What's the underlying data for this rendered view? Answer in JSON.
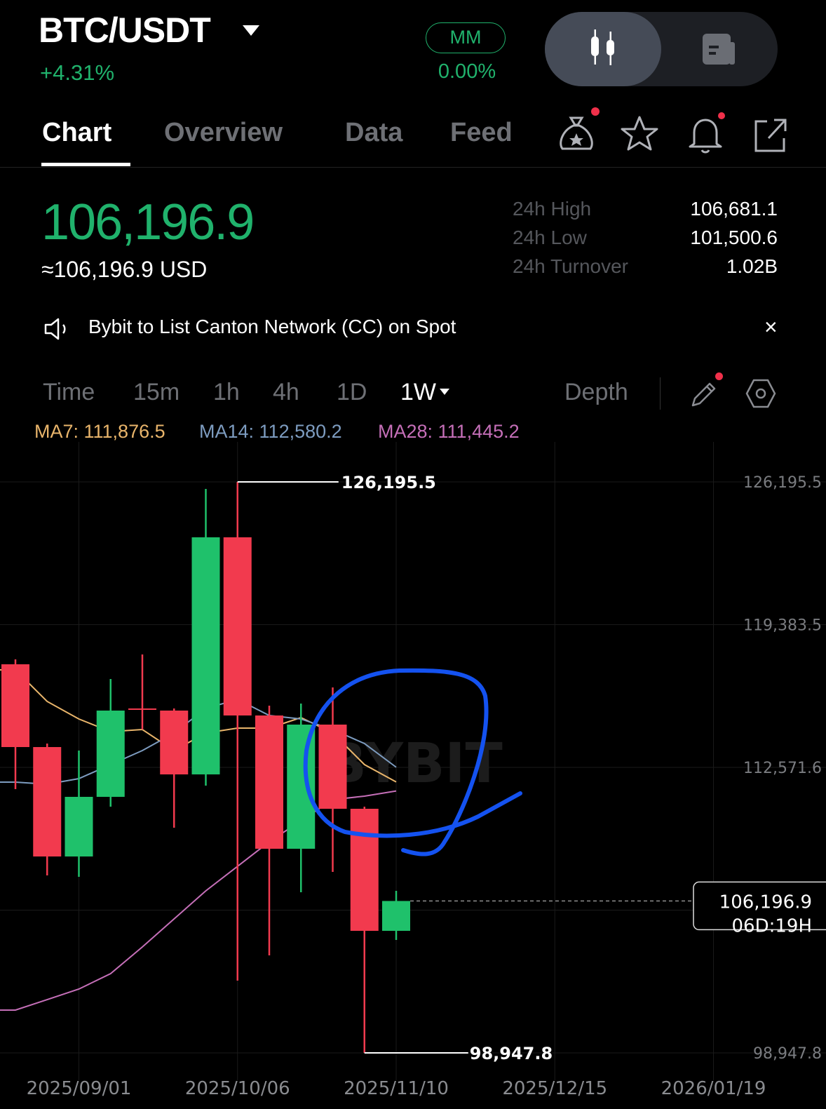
{
  "header": {
    "pair": "BTC/USDT",
    "change_pct": "+4.31%",
    "mm_label": "MM",
    "mm_value": "0.00%",
    "view_toggle": [
      "candlestick-icon",
      "document-icon"
    ]
  },
  "tabs": [
    {
      "label": "Chart",
      "active": true
    },
    {
      "label": "Overview"
    },
    {
      "label": "Data"
    },
    {
      "label": "Feed"
    }
  ],
  "tab_icons": [
    "reward-bag-icon",
    "star-icon",
    "bell-icon",
    "share-icon"
  ],
  "ticker": {
    "last_price": "106,196.9",
    "usd_price": "≈106,196.9 USD",
    "stats": [
      {
        "label": "24h High",
        "value": "106,681.1"
      },
      {
        "label": "24h Low",
        "value": "101,500.6"
      },
      {
        "label": "24h Turnover",
        "value": "1.02B"
      }
    ]
  },
  "notice": {
    "text": "Bybit to List Canton Network (CC) on Spot",
    "close": "×"
  },
  "intervals": [
    {
      "label": "Time"
    },
    {
      "label": "15m"
    },
    {
      "label": "1h"
    },
    {
      "label": "4h"
    },
    {
      "label": "1D"
    },
    {
      "label": "1W",
      "active": true
    }
  ],
  "depth_label": "Depth",
  "ma_legend": [
    {
      "label": "MA7: 111,876.5",
      "color": "#e9b56b"
    },
    {
      "label": "MA14: 112,580.2",
      "color": "#7d9cc0"
    },
    {
      "label": "MA28: 111,445.2",
      "color": "#c56fb8"
    }
  ],
  "colors": {
    "up": "#1fc16b",
    "down": "#f23a4e",
    "accent_green": "#20b26c",
    "annotation": "#1452f0"
  },
  "watermark": "BYBIT",
  "chart_data": {
    "type": "candlestick",
    "interval": "1W",
    "dates": [
      "2025/08/18",
      "2025/08/25",
      "2025/09/01",
      "2025/09/08",
      "2025/09/15",
      "2025/09/22",
      "2025/09/29",
      "2025/10/06",
      "2025/10/13",
      "2025/10/20",
      "2025/10/27",
      "2025/11/03",
      "2025/11/10"
    ],
    "ohlc": [
      [
        117492,
        117726,
        111534,
        113542
      ],
      [
        113542,
        113710,
        107417,
        108320
      ],
      [
        108320,
        113375,
        107350,
        111166
      ],
      [
        111166,
        116789,
        110697,
        115283
      ],
      [
        115384,
        117961,
        114379,
        115317
      ],
      [
        115283,
        115384,
        109693,
        112237
      ],
      [
        112237,
        125861,
        111701,
        123551
      ],
      [
        123551,
        126195.5,
        102396,
        115049
      ],
      [
        115049,
        115518,
        103601,
        108689
      ],
      [
        108689,
        115618,
        106613,
        114614
      ],
      [
        114614,
        116388,
        107584,
        110597
      ],
      [
        110597,
        110697,
        98947.8,
        104772
      ],
      [
        104772,
        106681.1,
        104337,
        106196.9
      ]
    ],
    "ma": {
      "MA7": [
        117224,
        115718,
        114881,
        114278,
        114379,
        113375,
        114212,
        114446,
        114446,
        114948,
        114212,
        112705,
        111876.5
      ],
      "MA14": [
        111868,
        111768,
        112036,
        112705,
        113375,
        114212,
        115384,
        115818,
        115049,
        114881,
        114379,
        113710,
        112580.2
      ],
      "MA28": [
        100990,
        101491,
        101994,
        102730,
        104002,
        105341,
        106680,
        107851,
        109023,
        110027,
        111032,
        111199,
        111445.2
      ]
    },
    "y_ticks": [
      "126,195.5",
      "119,383.5",
      "112,571.6",
      "98,947.8"
    ],
    "y_tick_values": [
      126195.5,
      119383.5,
      112571.6,
      98947.8
    ],
    "x_ticks": [
      "2025/09/01",
      "2025/10/06",
      "2025/11/10",
      "2025/12/15",
      "2026/01/19"
    ],
    "high_marker": {
      "label": "126,195.5",
      "value": 126195.5
    },
    "low_marker": {
      "label": "98,947.8",
      "value": 98947.8
    },
    "current_price": {
      "label": "106,196.9",
      "value": 106196.9,
      "countdown": "06D:19H"
    },
    "grid": true
  }
}
